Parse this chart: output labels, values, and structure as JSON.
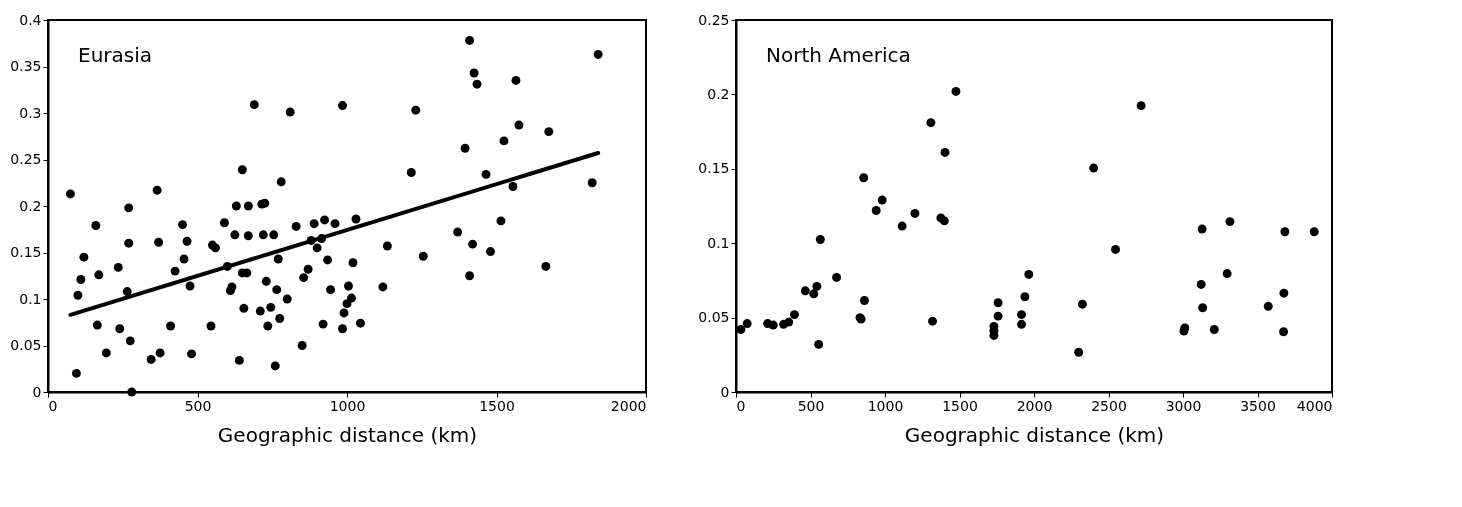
{
  "chart_data": [
    {
      "type": "scatter",
      "xlabel": "Geographic distance (km)",
      "annotations": [
        "Eurasia"
      ],
      "xlim": [
        0,
        2000
      ],
      "xticks": [
        0,
        500,
        1000,
        1500,
        2000
      ],
      "ylim": [
        0,
        0.4
      ],
      "yticks": [
        0,
        0.05,
        0.1,
        0.15,
        0.2,
        0.25,
        0.3,
        0.35,
        0.4
      ],
      "series": [
        {
          "color": "#000000",
          "marker": "circle",
          "x": [
            75,
            95,
            100,
            110,
            120,
            160,
            165,
            170,
            195,
            235,
            240,
            265,
            270,
            270,
            275,
            280,
            345,
            365,
            370,
            375,
            410,
            425,
            450,
            455,
            465,
            475,
            480,
            545,
            550,
            560,
            590,
            600,
            610,
            615,
            625,
            630,
            640,
            650,
            650,
            655,
            665,
            670,
            670,
            690,
            710,
            715,
            720,
            725,
            730,
            735,
            745,
            755,
            760,
            765,
            770,
            775,
            780,
            800,
            810,
            830,
            850,
            855,
            870,
            880,
            890,
            900,
            915,
            920,
            925,
            935,
            945,
            960,
            985,
            985,
            990,
            1000,
            1005,
            1015,
            1020,
            1030,
            1045,
            1120,
            1135,
            1215,
            1230,
            1255,
            1370,
            1395,
            1410,
            1410,
            1420,
            1425,
            1435,
            1465,
            1480,
            1515,
            1525,
            1555,
            1565,
            1575,
            1665,
            1675,
            1820,
            1840
          ],
          "values": [
            0.213,
            0.02,
            0.104,
            0.121,
            0.145,
            0.179,
            0.072,
            0.126,
            0.042,
            0.134,
            0.068,
            0.108,
            0.16,
            0.198,
            0.055,
            0,
            0.035,
            0.217,
            0.161,
            0.042,
            0.071,
            0.13,
            0.18,
            0.143,
            0.162,
            0.114,
            0.041,
            0.071,
            0.158,
            0.155,
            0.182,
            0.135,
            0.109,
            0.113,
            0.169,
            0.2,
            0.034,
            0.128,
            0.239,
            0.09,
            0.128,
            0.2,
            0.168,
            0.309,
            0.087,
            0.202,
            0.169,
            0.203,
            0.119,
            0.071,
            0.091,
            0.169,
            0.028,
            0.11,
            0.143,
            0.079,
            0.226,
            0.1,
            0.301,
            0.178,
            0.05,
            0.123,
            0.132,
            0.163,
            0.181,
            0.155,
            0.165,
            0.073,
            0.185,
            0.142,
            0.11,
            0.181,
            0.308,
            0.068,
            0.085,
            0.095,
            0.114,
            0.101,
            0.139,
            0.186,
            0.074,
            0.113,
            0.157,
            0.236,
            0.303,
            0.146,
            0.172,
            0.262,
            0.378,
            0.125,
            0.159,
            0.343,
            0.331,
            0.234,
            0.151,
            0.184,
            0.27,
            0.221,
            0.335,
            0.287,
            0.135,
            0.28,
            0.225,
            0.363
          ]
        },
        {
          "type": "line",
          "color": "#000000",
          "x": [
            75,
            1840
          ],
          "values": [
            0.083,
            0.257
          ]
        }
      ]
    },
    {
      "type": "scatter",
      "xlabel": "Geographic distance (km)",
      "annotations": [
        "North America"
      ],
      "marker": "circle",
      "xlim": [
        0,
        4000
      ],
      "xticks": [
        0,
        500,
        1000,
        1500,
        2000,
        2500,
        3000,
        3500,
        4000
      ],
      "ylim": [
        0,
        0.25
      ],
      "yticks": [
        0,
        0.05,
        0.1,
        0.15,
        0.2,
        0.25
      ],
      "series": [
        {
          "color": "#000000",
          "x": [
            33,
            75,
            212,
            250,
            319,
            354,
            392,
            465,
            522,
            543,
            555,
            566,
            675,
            832,
            840,
            862,
            857,
            941,
            981,
            1115,
            1201,
            1308,
            1319,
            1375,
            1398,
            1403,
            1476,
            1731,
            1731,
            1731,
            1759,
            1759,
            1916,
            1916,
            1939,
            1965,
            2325,
            2300,
            2400,
            2547,
            2719,
            3006,
            3012,
            3210,
            3122,
            3128,
            3132,
            3296,
            3315,
            3572,
            3677,
            3675,
            3684,
            3881
          ],
          "values": [
            0.042,
            0.046,
            0.046,
            0.045,
            0.0455,
            0.047,
            0.052,
            0.068,
            0.066,
            0.071,
            0.032,
            0.1025,
            0.077,
            0.05,
            0.049,
            0.0615,
            0.144,
            0.122,
            0.129,
            0.1115,
            0.12,
            0.181,
            0.0476,
            0.117,
            0.115,
            0.161,
            0.202,
            0.044,
            0.041,
            0.038,
            0.051,
            0.06,
            0.0455,
            0.052,
            0.064,
            0.079,
            0.059,
            0.0267,
            0.1505,
            0.0958,
            0.1924,
            0.041,
            0.043,
            0.042,
            0.0723,
            0.1095,
            0.0566,
            0.0796,
            0.1145,
            0.0576,
            0.0664,
            0.0405,
            0.1077,
            0.1077
          ]
        }
      ]
    }
  ]
}
